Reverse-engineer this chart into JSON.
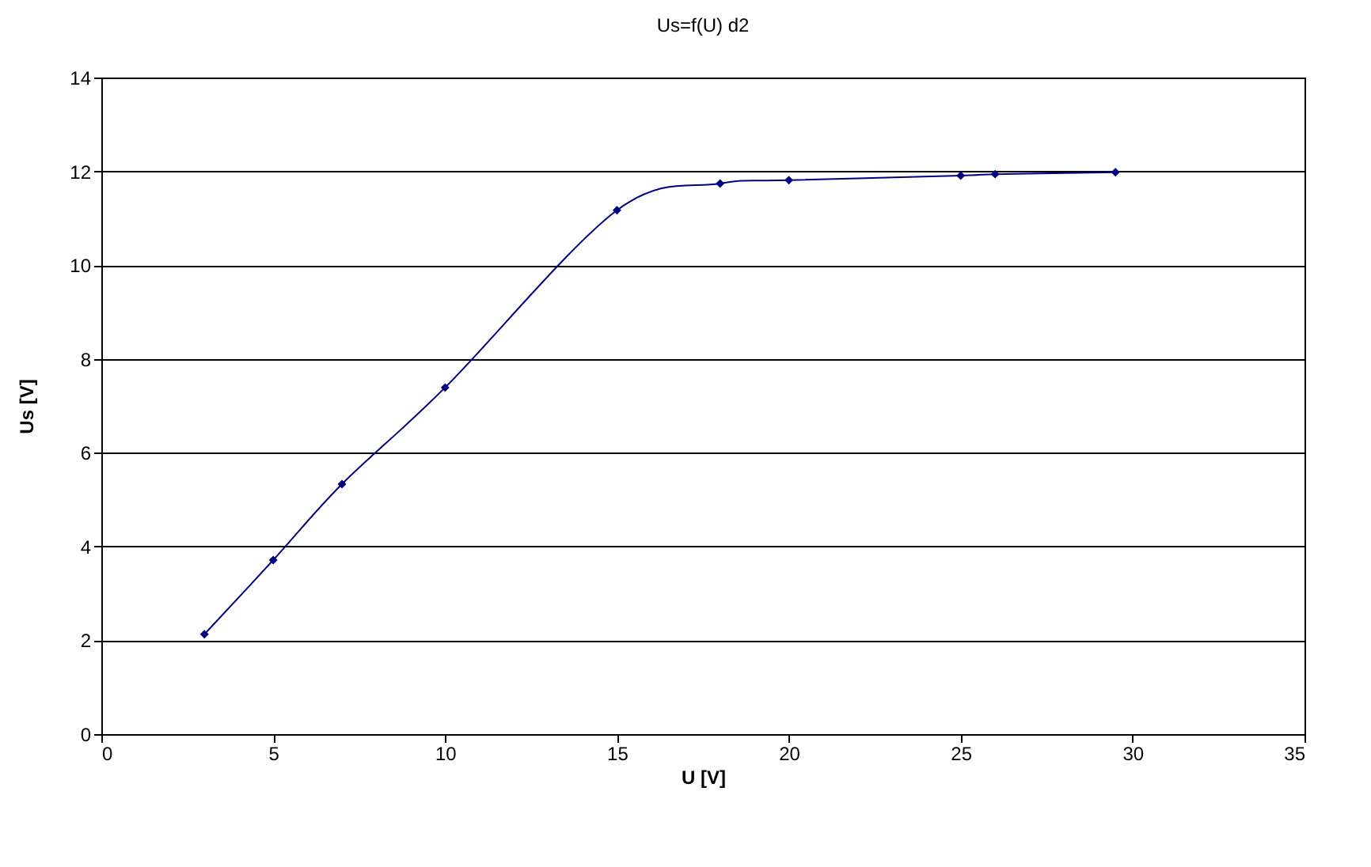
{
  "chart_data": {
    "type": "line",
    "title": "Us=f(U) d2",
    "xlabel": "U [V]",
    "ylabel": "Us [V]",
    "x": [
      3,
      5,
      7,
      10,
      15,
      18,
      20,
      25,
      26,
      29.5
    ],
    "series": [
      {
        "color": "#000080",
        "values": [
          2.13,
          3.71,
          5.33,
          7.39,
          11.17,
          11.74,
          11.81,
          11.91,
          11.94,
          11.98
        ]
      }
    ],
    "xlim": [
      0,
      35
    ],
    "xticks": [
      0,
      5,
      10,
      15,
      20,
      25,
      30,
      35
    ],
    "ylim": [
      0,
      14
    ],
    "yticks": [
      0,
      2,
      4,
      6,
      8,
      10,
      12,
      14
    ],
    "grid": "y",
    "marker": "diamond",
    "line_style": "solid"
  }
}
